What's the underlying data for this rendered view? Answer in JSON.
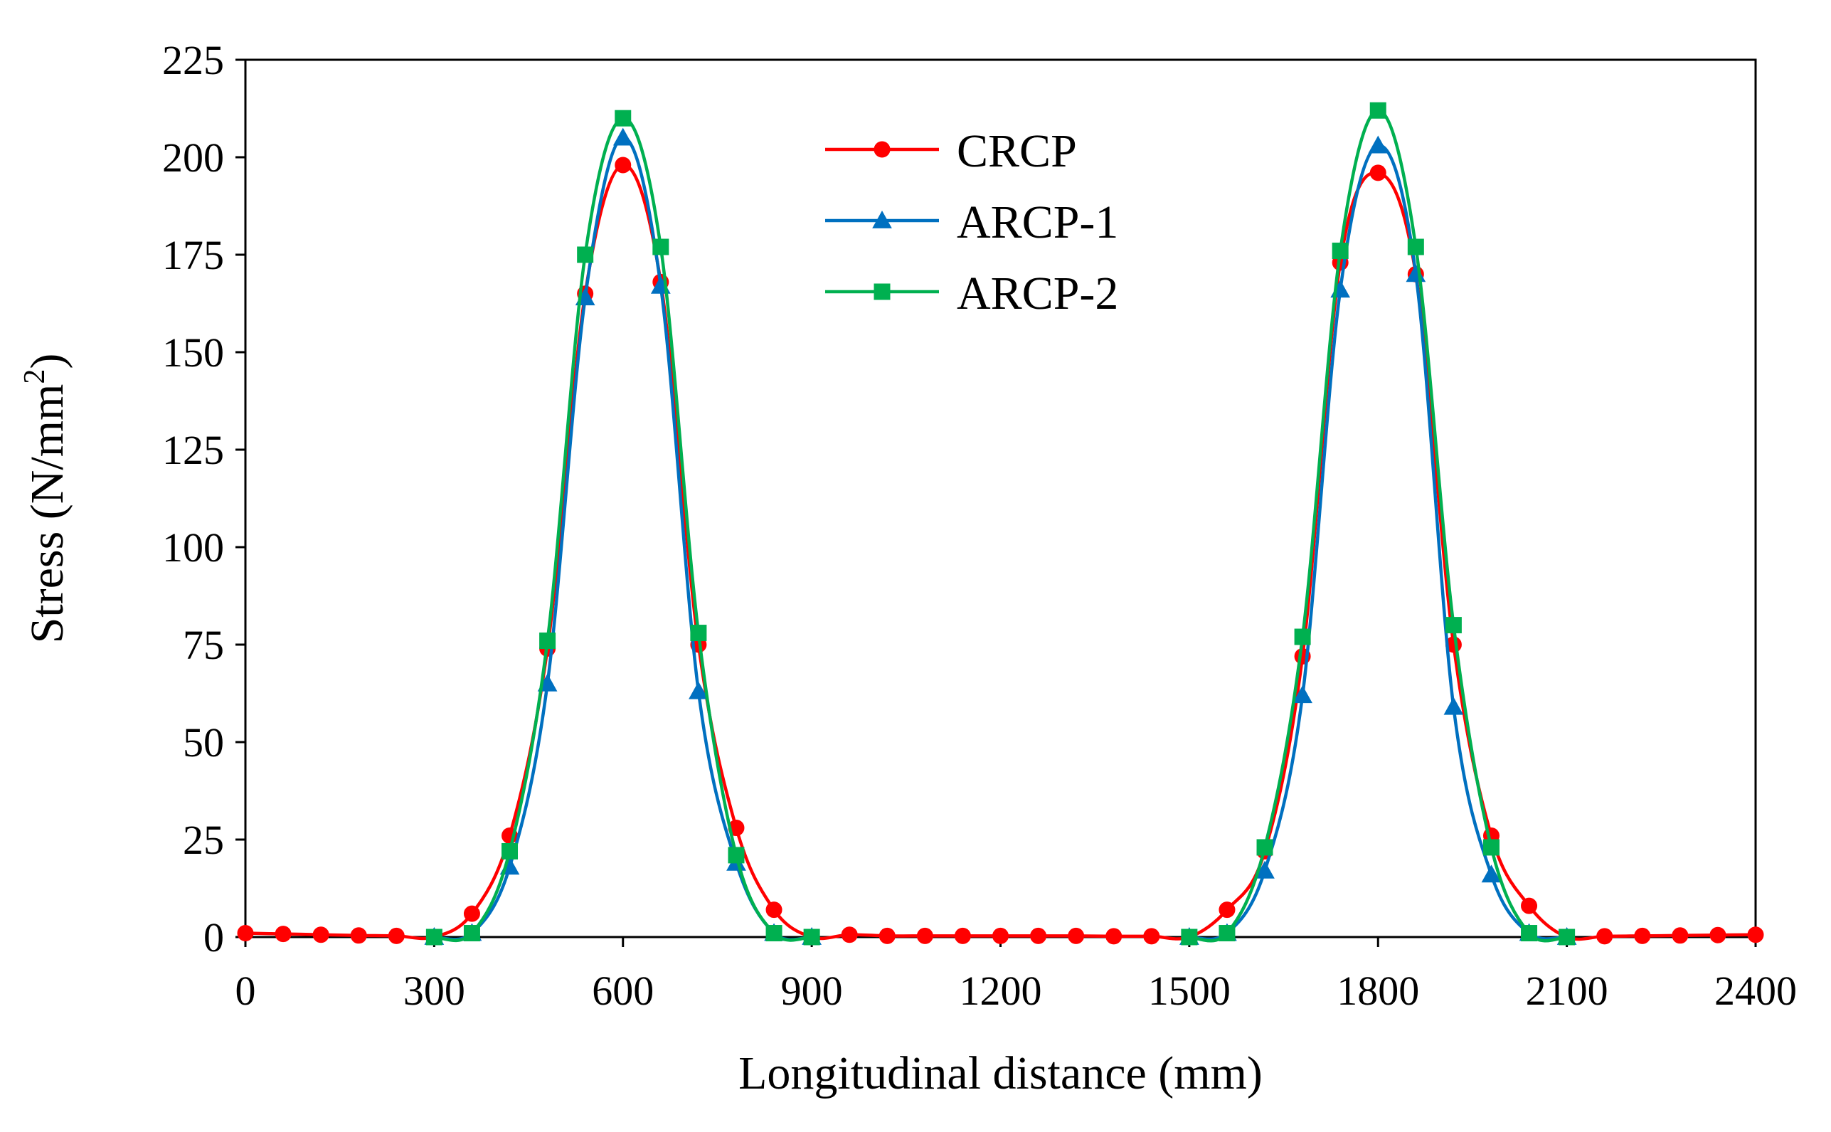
{
  "chart_data": {
    "type": "line",
    "title": "",
    "xlabel": "Longitudinal distance (mm)",
    "ylabel_main": "Stress (N/mm",
    "ylabel_sup": "2",
    "ylabel_close": ")",
    "xlim": [
      0,
      2400
    ],
    "ylim": [
      0,
      225
    ],
    "xticks": [
      0,
      300,
      600,
      900,
      1200,
      1500,
      1800,
      2100,
      2400
    ],
    "yticks": [
      0,
      25,
      50,
      75,
      100,
      125,
      150,
      175,
      200,
      225
    ],
    "legend_position": "top-center",
    "grid": false,
    "series": [
      {
        "name": "CRCP",
        "color": "#ff0000",
        "marker": "circle",
        "x": [
          0,
          60,
          120,
          180,
          240,
          300,
          360,
          420,
          480,
          540,
          600,
          660,
          720,
          780,
          840,
          900,
          960,
          1020,
          1080,
          1140,
          1200,
          1260,
          1320,
          1380,
          1440,
          1500,
          1560,
          1620,
          1680,
          1740,
          1800,
          1860,
          1920,
          1980,
          2040,
          2100,
          2160,
          2220,
          2280,
          2340,
          2400
        ],
        "y": [
          1,
          0.8,
          0.6,
          0.4,
          0.3,
          0,
          6,
          26,
          74,
          165,
          198,
          168,
          75,
          28,
          7,
          0,
          0.6,
          0.3,
          0.3,
          0.3,
          0.3,
          0.3,
          0.3,
          0.2,
          0.2,
          0,
          7,
          22,
          72,
          173,
          196,
          170,
          75,
          26,
          8,
          0,
          0.2,
          0.3,
          0.4,
          0.5,
          0.6
        ]
      },
      {
        "name": "ARCP-1",
        "color": "#0070c0",
        "marker": "triangle",
        "x": [
          300,
          360,
          420,
          480,
          540,
          600,
          660,
          720,
          780,
          840,
          900,
          1500,
          1560,
          1620,
          1680,
          1740,
          1800,
          1860,
          1920,
          1980,
          2040,
          2100
        ],
        "y": [
          0,
          1,
          18,
          65,
          164,
          205,
          167,
          63,
          19,
          1,
          0,
          0,
          1,
          17,
          62,
          166,
          203,
          170,
          59,
          16,
          1,
          0
        ]
      },
      {
        "name": "ARCP-2",
        "color": "#00b050",
        "marker": "square",
        "x": [
          300,
          360,
          420,
          480,
          540,
          600,
          660,
          720,
          780,
          840,
          900,
          1500,
          1560,
          1620,
          1680,
          1740,
          1800,
          1860,
          1920,
          1980,
          2040,
          2100
        ],
        "y": [
          0,
          1,
          22,
          76,
          175,
          210,
          177,
          78,
          21,
          1,
          0,
          0,
          1,
          23,
          77,
          176,
          212,
          177,
          80,
          23,
          1,
          0
        ]
      }
    ]
  }
}
